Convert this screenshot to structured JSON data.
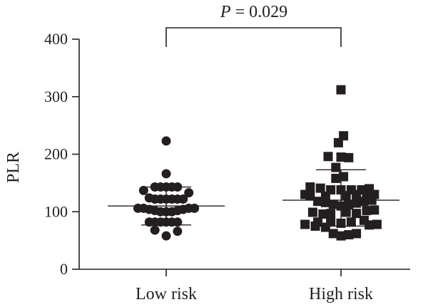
{
  "chart_data": {
    "type": "scatter",
    "ylabel": "PLR",
    "ylim": [
      0,
      400
    ],
    "yticks": [
      0,
      100,
      200,
      300,
      400
    ],
    "categories": [
      "Low risk",
      "High risk"
    ],
    "annotation": {
      "italic_part": "P",
      "rest": " = 0.029"
    },
    "series": [
      {
        "category": "Low risk",
        "marker": "circle",
        "mean": 110,
        "sd_upper": 143,
        "sd_lower": 77,
        "points": [
          {
            "offset": 0.0,
            "y": 223
          },
          {
            "offset": 0.0,
            "y": 166
          },
          {
            "offset": -0.22,
            "y": 143
          },
          {
            "offset": -0.11,
            "y": 143
          },
          {
            "offset": 0.0,
            "y": 143
          },
          {
            "offset": 0.11,
            "y": 143
          },
          {
            "offset": 0.22,
            "y": 143
          },
          {
            "offset": -0.44,
            "y": 137
          },
          {
            "offset": 0.44,
            "y": 133
          },
          {
            "offset": -0.33,
            "y": 124
          },
          {
            "offset": -0.22,
            "y": 122
          },
          {
            "offset": -0.11,
            "y": 122
          },
          {
            "offset": 0.0,
            "y": 122
          },
          {
            "offset": 0.11,
            "y": 122
          },
          {
            "offset": 0.22,
            "y": 122
          },
          {
            "offset": 0.33,
            "y": 122
          },
          {
            "offset": -0.55,
            "y": 106
          },
          {
            "offset": -0.44,
            "y": 106
          },
          {
            "offset": -0.33,
            "y": 104
          },
          {
            "offset": -0.22,
            "y": 102
          },
          {
            "offset": -0.11,
            "y": 100
          },
          {
            "offset": 0.0,
            "y": 100
          },
          {
            "offset": 0.11,
            "y": 100
          },
          {
            "offset": 0.22,
            "y": 102
          },
          {
            "offset": 0.33,
            "y": 104
          },
          {
            "offset": 0.44,
            "y": 106
          },
          {
            "offset": 0.55,
            "y": 106
          },
          {
            "offset": -0.33,
            "y": 82
          },
          {
            "offset": -0.22,
            "y": 82
          },
          {
            "offset": -0.11,
            "y": 82
          },
          {
            "offset": 0.0,
            "y": 82
          },
          {
            "offset": 0.11,
            "y": 82
          },
          {
            "offset": 0.22,
            "y": 82
          },
          {
            "offset": -0.22,
            "y": 68
          },
          {
            "offset": 0.22,
            "y": 66
          },
          {
            "offset": 0.0,
            "y": 58
          }
        ]
      },
      {
        "category": "High risk",
        "marker": "square",
        "mean": 120,
        "sd_upper": 173,
        "sd_lower": 75,
        "points": [
          {
            "offset": 0.0,
            "y": 312
          },
          {
            "offset": 0.05,
            "y": 232
          },
          {
            "offset": -0.05,
            "y": 220
          },
          {
            "offset": -0.25,
            "y": 196
          },
          {
            "offset": 0.0,
            "y": 195
          },
          {
            "offset": 0.15,
            "y": 194
          },
          {
            "offset": -0.1,
            "y": 177
          },
          {
            "offset": 0.05,
            "y": 161
          },
          {
            "offset": -0.1,
            "y": 158
          },
          {
            "offset": -0.6,
            "y": 143
          },
          {
            "offset": -0.4,
            "y": 141
          },
          {
            "offset": -0.2,
            "y": 138
          },
          {
            "offset": 0.0,
            "y": 138
          },
          {
            "offset": 0.2,
            "y": 138
          },
          {
            "offset": 0.4,
            "y": 138
          },
          {
            "offset": 0.55,
            "y": 140
          },
          {
            "offset": -0.7,
            "y": 130
          },
          {
            "offset": -0.6,
            "y": 128
          },
          {
            "offset": -0.3,
            "y": 127
          },
          {
            "offset": 0.1,
            "y": 128
          },
          {
            "offset": 0.3,
            "y": 130
          },
          {
            "offset": 0.5,
            "y": 133
          },
          {
            "offset": 0.65,
            "y": 130
          },
          {
            "offset": -0.45,
            "y": 118
          },
          {
            "offset": -0.3,
            "y": 116
          },
          {
            "offset": -0.15,
            "y": 113
          },
          {
            "offset": 0.0,
            "y": 110
          },
          {
            "offset": 0.15,
            "y": 112
          },
          {
            "offset": 0.3,
            "y": 115
          },
          {
            "offset": 0.45,
            "y": 118
          },
          {
            "offset": 0.6,
            "y": 120
          },
          {
            "offset": -0.55,
            "y": 99
          },
          {
            "offset": -0.35,
            "y": 96
          },
          {
            "offset": -0.2,
            "y": 97
          },
          {
            "offset": 0.1,
            "y": 99
          },
          {
            "offset": 0.3,
            "y": 97
          },
          {
            "offset": 0.5,
            "y": 102
          },
          {
            "offset": 0.65,
            "y": 103
          },
          {
            "offset": -0.45,
            "y": 82
          },
          {
            "offset": -0.2,
            "y": 83
          },
          {
            "offset": 0.0,
            "y": 80
          },
          {
            "offset": 0.2,
            "y": 82
          },
          {
            "offset": 0.45,
            "y": 85
          },
          {
            "offset": -0.7,
            "y": 78
          },
          {
            "offset": -0.5,
            "y": 75
          },
          {
            "offset": -0.3,
            "y": 73
          },
          {
            "offset": 0.55,
            "y": 77
          },
          {
            "offset": 0.7,
            "y": 78
          },
          {
            "offset": -0.15,
            "y": 62
          },
          {
            "offset": 0.0,
            "y": 58
          },
          {
            "offset": 0.15,
            "y": 60
          },
          {
            "offset": 0.3,
            "y": 62
          }
        ]
      }
    ]
  }
}
